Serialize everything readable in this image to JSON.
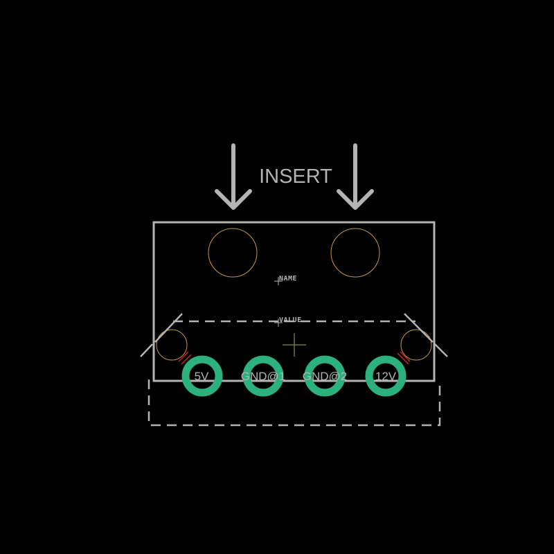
{
  "labels": {
    "insert": "INSERT",
    "name": "NAME",
    "value": "VALUE"
  },
  "pins": [
    {
      "id": "5v",
      "label": "5V"
    },
    {
      "id": "gnd1",
      "label": "GND@1"
    },
    {
      "id": "gnd2",
      "label": "GND@2"
    },
    {
      "id": "12v",
      "label": "12V"
    }
  ],
  "colors": {
    "background": "#000000",
    "silkscreen": "#b4b4b4",
    "pad": "#2bb07e",
    "drill_outline": "#c8964a",
    "origin_marker": "#8c8c3c",
    "keepout": "#cc2222"
  }
}
